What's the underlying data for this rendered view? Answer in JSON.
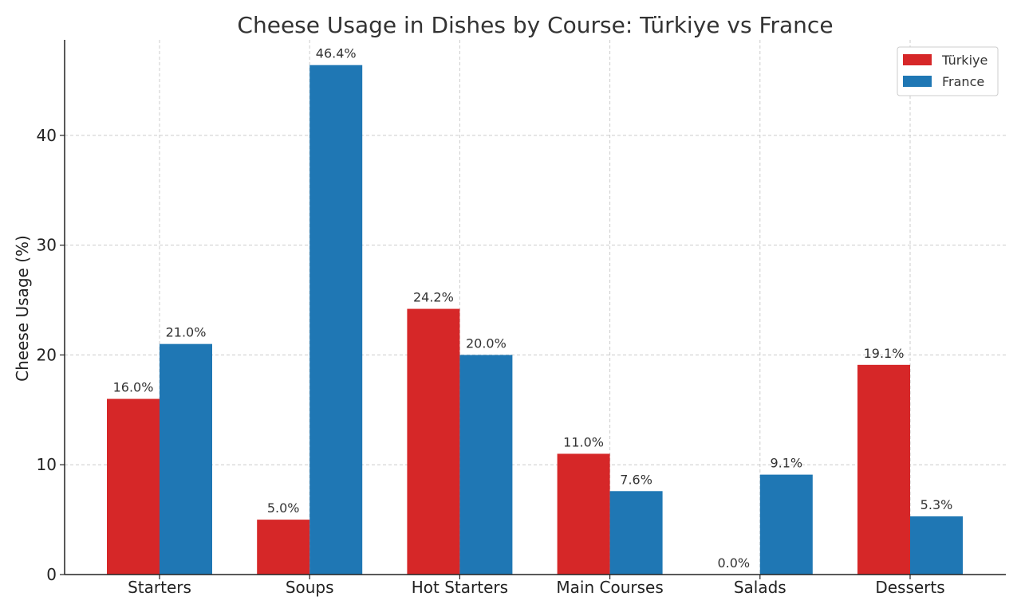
{
  "chart_data": {
    "type": "bar",
    "title": "Cheese Usage in Dishes by Course: Türkiye vs France",
    "xlabel": "",
    "ylabel": "Cheese Usage (%)",
    "categories": [
      "Starters",
      "Soups",
      "Hot Starters",
      "Main Courses",
      "Salads",
      "Desserts"
    ],
    "series": [
      {
        "name": "Türkiye",
        "color": "#d62728",
        "values": [
          16.0,
          5.0,
          24.2,
          11.0,
          0.0,
          19.1
        ],
        "labels": [
          "16.0%",
          "5.0%",
          "24.2%",
          "11.0%",
          "0.0%",
          "19.1%"
        ]
      },
      {
        "name": "France",
        "color": "#1f77b4",
        "values": [
          21.0,
          46.4,
          20.0,
          7.6,
          9.1,
          5.3
        ],
        "labels": [
          "21.0%",
          "46.4%",
          "20.0%",
          "7.6%",
          "9.1%",
          "5.3%"
        ]
      }
    ],
    "ylim": [
      0,
      48.7
    ],
    "yticks": [
      0,
      10,
      20,
      30,
      40
    ],
    "ytick_labels": [
      "0",
      "10",
      "20",
      "30",
      "40"
    ],
    "grid": true,
    "legend_position": "top-right"
  }
}
